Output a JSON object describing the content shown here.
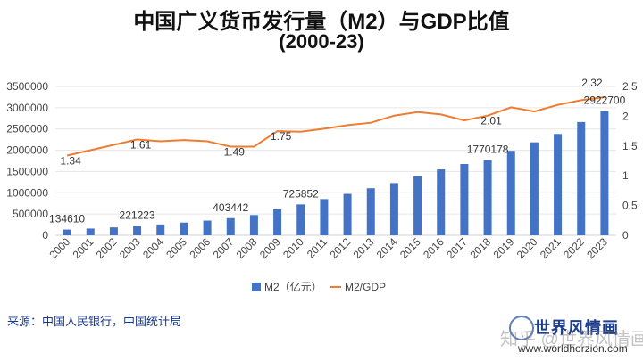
{
  "title": "中国广义货币发行量（M2）与GDP比值",
  "subtitle": "(2000-23)",
  "source": "来源：中国人民银行，中国统计局",
  "watermark": {
    "brand": "世界风情画",
    "overlay": "知乎 @世界风情画",
    "url": "www.worldhorzion.com"
  },
  "colors": {
    "bar": "#4472C4",
    "line": "#ED7D31",
    "grid": "#e6e6e6"
  },
  "chart_data": {
    "type": "bar",
    "title": "中国广义货币发行量（M2）与GDP比值 (2000-23)",
    "categories": [
      "2000",
      "2001",
      "2002",
      "2003",
      "2004",
      "2005",
      "2006",
      "2007",
      "2008",
      "2009",
      "2010",
      "2011",
      "2012",
      "2013",
      "2014",
      "2015",
      "2016",
      "2017",
      "2018",
      "2019",
      "2020",
      "2021",
      "2022",
      "2023"
    ],
    "series": [
      {
        "name": "M2（亿元）",
        "type": "bar",
        "axis": "left",
        "values": [
          134610,
          158302,
          185007,
          221223,
          254107,
          298756,
          345578,
          403442,
          475167,
          610225,
          725852,
          851591,
          974149,
          1106525,
          1228375,
          1392278,
          1550067,
          1676769,
          1770178,
          1986489,
          2186796,
          2382900,
          2664300,
          2922700
        ],
        "labeled": [
          0,
          3,
          7,
          10,
          18,
          23
        ]
      },
      {
        "name": "M2/GDP",
        "type": "line",
        "axis": "right",
        "values": [
          1.34,
          1.43,
          1.52,
          1.61,
          1.58,
          1.6,
          1.58,
          1.49,
          1.49,
          1.75,
          1.74,
          1.79,
          1.85,
          1.89,
          2.01,
          2.07,
          2.03,
          1.93,
          2.01,
          2.15,
          2.08,
          2.19,
          2.27,
          2.32
        ],
        "labeled": [
          0,
          3,
          7,
          9,
          18,
          23
        ]
      }
    ],
    "left_axis": {
      "ylim": [
        0,
        3500000
      ],
      "ticks": [
        "0",
        "500000",
        "1000000",
        "1500000",
        "2000000",
        "2500000",
        "3000000",
        "3500000"
      ]
    },
    "right_axis": {
      "ylim": [
        0,
        2.5
      ],
      "ticks": [
        "0",
        "0.5",
        "1",
        "1.5",
        "2",
        "2.5"
      ]
    },
    "grid": true,
    "legend": {
      "position": "bottom",
      "entries": [
        "M2（亿元）",
        "M2/GDP"
      ]
    }
  }
}
